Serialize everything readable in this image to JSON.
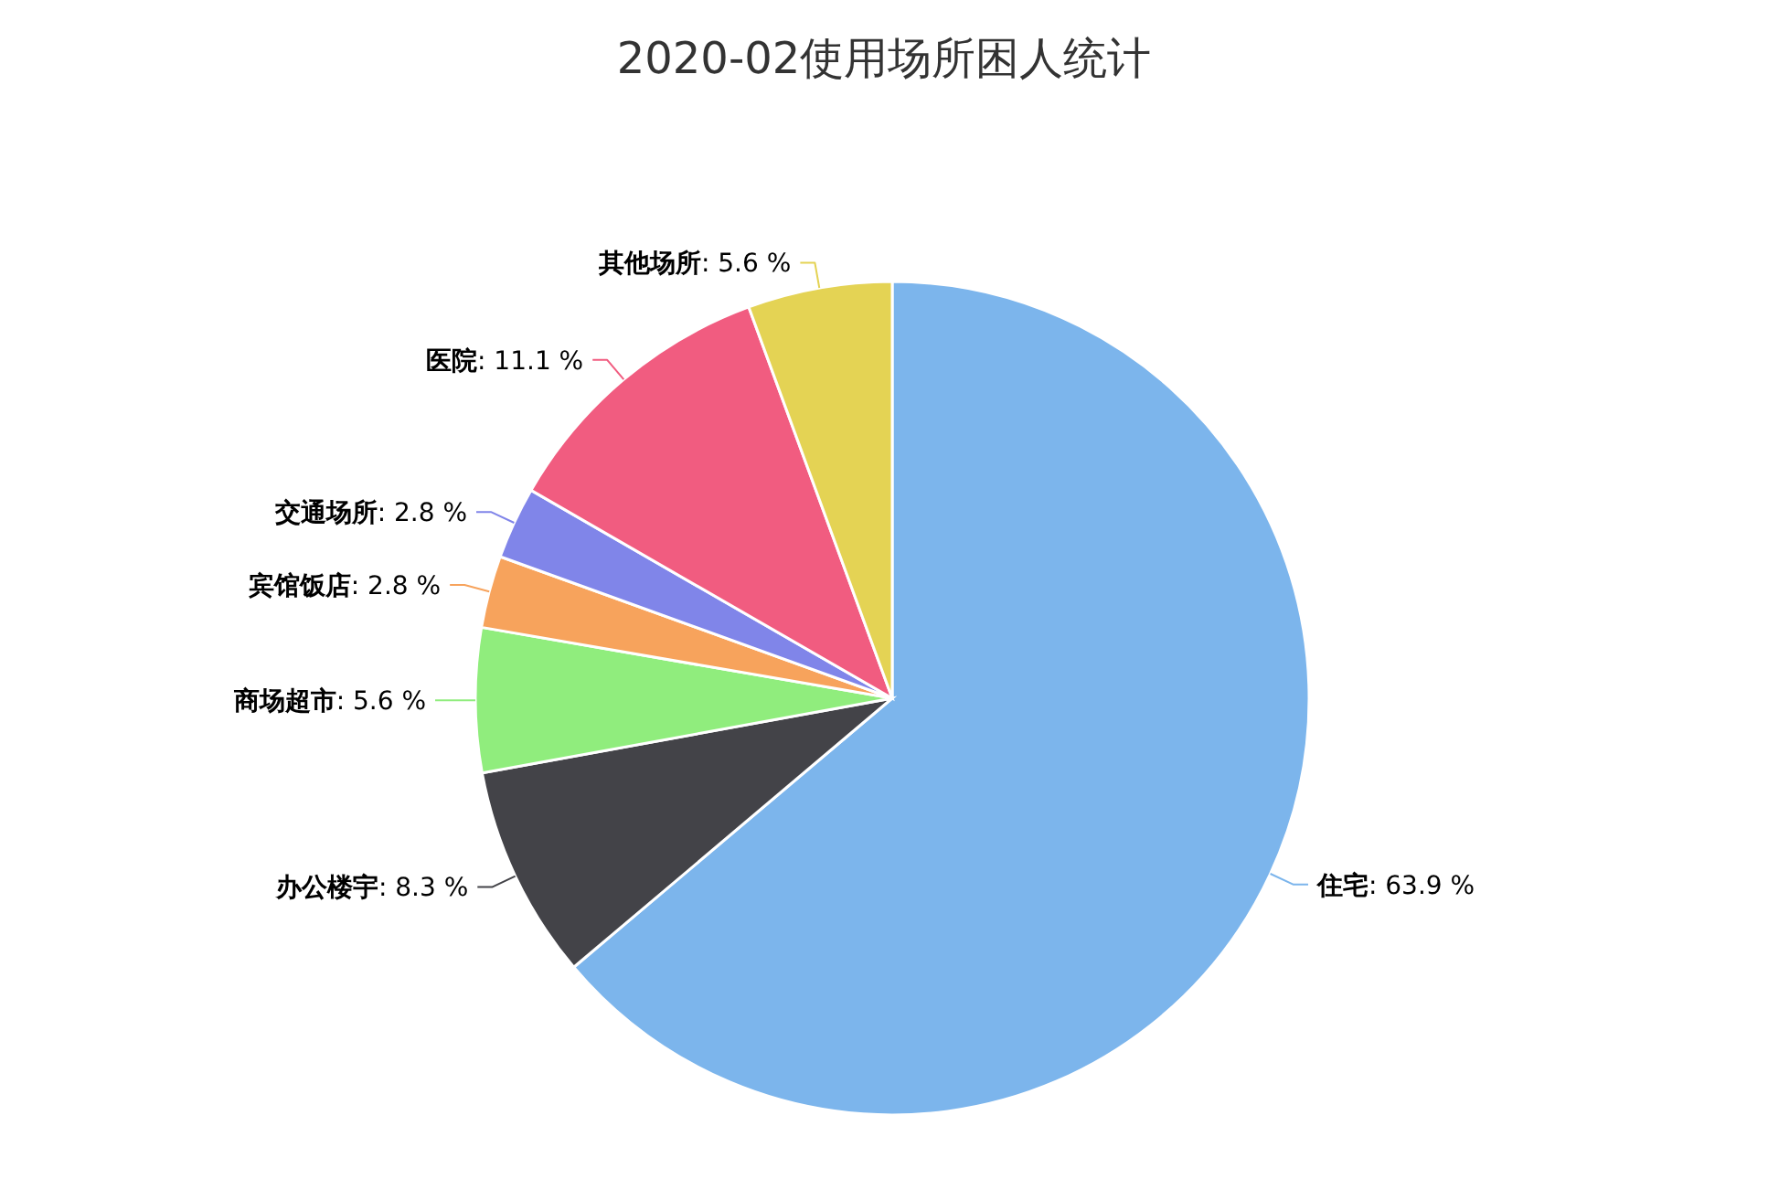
{
  "chart_data": {
    "type": "pie",
    "title": "2020-02使用场所困人统计",
    "categories": [
      "住宅",
      "办公楼宇",
      "商场超市",
      "宾馆饭店",
      "交通场所",
      "医院",
      "其他场所"
    ],
    "values": [
      63.9,
      8.3,
      5.6,
      2.8,
      2.8,
      11.1,
      5.6
    ],
    "value_labels": [
      ": 63.9 %",
      ": 8.3 %",
      ": 5.6 %",
      ": 2.8 %",
      ": 2.8 %",
      ": 11.1 %",
      ": 5.6 %"
    ],
    "colors": [
      "#7cb5ec",
      "#434348",
      "#90ed7d",
      "#f7a35c",
      "#8085e9",
      "#f15c80",
      "#e4d354"
    ],
    "legend": false
  }
}
